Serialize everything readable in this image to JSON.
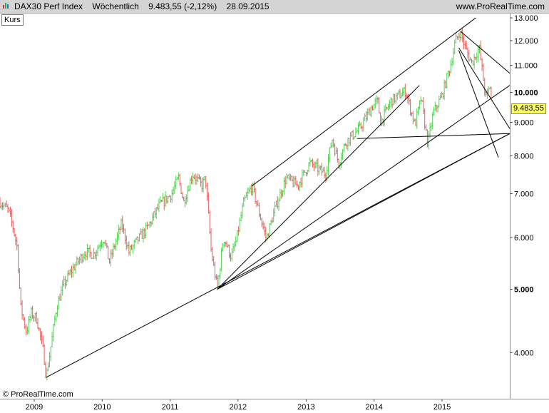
{
  "header": {
    "instrument": "DAX30 Perf Index",
    "period": "Wöchentlich",
    "quote": "9.483,55 (-2,12%)",
    "date": "28.09.2015",
    "website": "www.ProRealTime.com",
    "icon": "bar-chart-icon"
  },
  "panel_tag": "Kurs",
  "copyright": "© ProRealTime.com",
  "last_price_label": "9.483,55",
  "colors": {
    "up": "#55cc55",
    "down": "#e06060",
    "lines": "#000000",
    "badge": "#ffff66"
  },
  "chart_data": {
    "type": "ohlc",
    "title": "",
    "y_scale": "log",
    "ylim": [
      3400,
      13200
    ],
    "x_range": [
      "2008-07-01",
      "2015-12-31"
    ],
    "y_ticks": [
      {
        "value": 4000,
        "label": "4.000",
        "bold": false
      },
      {
        "value": 5000,
        "label": "5.000",
        "bold": true
      },
      {
        "value": 6000,
        "label": "6.000",
        "bold": false
      },
      {
        "value": 7000,
        "label": "7.000",
        "bold": false
      },
      {
        "value": 8000,
        "label": "8.000",
        "bold": false
      },
      {
        "value": 9000,
        "label": "9.000",
        "bold": false
      },
      {
        "value": 10000,
        "label": "10.000",
        "bold": true
      },
      {
        "value": 11000,
        "label": "11.000",
        "bold": false
      },
      {
        "value": 12000,
        "label": "12.000",
        "bold": false
      },
      {
        "value": 13000,
        "label": "13.000",
        "bold": false
      }
    ],
    "x_ticks": [
      {
        "date": "2009-01-01",
        "label": "2009"
      },
      {
        "date": "2010-01-01",
        "label": "2010"
      },
      {
        "date": "2011-01-01",
        "label": "2011"
      },
      {
        "date": "2012-01-01",
        "label": "2012"
      },
      {
        "date": "2013-01-01",
        "label": "2013"
      },
      {
        "date": "2014-01-01",
        "label": "2014"
      },
      {
        "date": "2015-01-01",
        "label": "2015"
      }
    ],
    "price_path": [
      [
        "2008-07-01",
        6800
      ],
      [
        "2008-08-15",
        6600
      ],
      [
        "2008-09-10",
        6200
      ],
      [
        "2008-10-01",
        5800
      ],
      [
        "2008-10-20",
        4700
      ],
      [
        "2008-11-20",
        4300
      ],
      [
        "2008-12-15",
        4600
      ],
      [
        "2009-01-15",
        4500
      ],
      [
        "2009-02-20",
        4000
      ],
      [
        "2009-03-06",
        3666
      ],
      [
        "2009-04-01",
        4100
      ],
      [
        "2009-05-01",
        4700
      ],
      [
        "2009-06-10",
        5100
      ],
      [
        "2009-08-01",
        5400
      ],
      [
        "2009-10-01",
        5700
      ],
      [
        "2009-11-15",
        5650
      ],
      [
        "2010-01-10",
        6000
      ],
      [
        "2010-02-08",
        5500
      ],
      [
        "2010-04-15",
        6300
      ],
      [
        "2010-05-25",
        5700
      ],
      [
        "2010-07-01",
        5900
      ],
      [
        "2010-09-01",
        6200
      ],
      [
        "2010-11-01",
        6700
      ],
      [
        "2011-01-10",
        7000
      ],
      [
        "2011-02-15",
        7400
      ],
      [
        "2011-03-15",
        6800
      ],
      [
        "2011-05-01",
        7500
      ],
      [
        "2011-06-20",
        7200
      ],
      [
        "2011-07-10",
        7400
      ],
      [
        "2011-08-10",
        5700
      ],
      [
        "2011-09-12",
        5000
      ],
      [
        "2011-10-15",
        6000
      ],
      [
        "2011-11-25",
        5600
      ],
      [
        "2011-12-20",
        5900
      ],
      [
        "2012-02-01",
        6800
      ],
      [
        "2012-03-16",
        7190
      ],
      [
        "2012-04-20",
        6600
      ],
      [
        "2012-06-01",
        5970
      ],
      [
        "2012-07-15",
        6600
      ],
      [
        "2012-09-15",
        7400
      ],
      [
        "2012-11-15",
        7200
      ],
      [
        "2013-01-20",
        7800
      ],
      [
        "2013-04-15",
        7500
      ],
      [
        "2013-05-20",
        8500
      ],
      [
        "2013-06-24",
        7800
      ],
      [
        "2013-08-01",
        8400
      ],
      [
        "2013-10-15",
        8800
      ],
      [
        "2013-12-20",
        9500
      ],
      [
        "2014-01-20",
        9700
      ],
      [
        "2014-02-05",
        9000
      ],
      [
        "2014-04-01",
        9700
      ],
      [
        "2014-06-20",
        10050
      ],
      [
        "2014-08-08",
        8900
      ],
      [
        "2014-09-10",
        9800
      ],
      [
        "2014-10-16",
        8350
      ],
      [
        "2014-11-15",
        9300
      ],
      [
        "2015-01-01",
        9900
      ],
      [
        "2015-02-15",
        11000
      ],
      [
        "2015-03-15",
        12000
      ],
      [
        "2015-04-10",
        12390
      ],
      [
        "2015-05-10",
        11600
      ],
      [
        "2015-06-10",
        11100
      ],
      [
        "2015-07-20",
        11700
      ],
      [
        "2015-08-24",
        9800
      ],
      [
        "2015-09-15",
        10200
      ],
      [
        "2015-09-28",
        9483.55
      ]
    ],
    "trendlines": [
      {
        "from": [
          "2012-03-15",
          7190
        ],
        "to": [
          "2015-07-01",
          13000
        ]
      },
      {
        "from": [
          "2009-03-06",
          3666
        ],
        "to": [
          "2015-12-31",
          8650
        ]
      },
      {
        "from": [
          "2011-09-12",
          5000
        ],
        "to": [
          "2014-09-01",
          10250
        ]
      },
      {
        "from": [
          "2011-09-12",
          5000
        ],
        "to": [
          "2015-12-31",
          10250
        ]
      },
      {
        "from": [
          "2011-09-12",
          5000
        ],
        "to": [
          "2015-12-31",
          8650
        ]
      },
      {
        "from": [
          "2013-10-01",
          8500
        ],
        "to": [
          "2015-12-31",
          8650
        ]
      },
      {
        "from": [
          "2015-04-10",
          12400
        ],
        "to": [
          "2015-12-31",
          10700
        ]
      },
      {
        "from": [
          "2015-04-01",
          11700
        ],
        "to": [
          "2015-12-31",
          8800
        ]
      },
      {
        "from": [
          "2015-04-01",
          11600
        ],
        "to": [
          "2015-10-31",
          7950
        ]
      }
    ]
  }
}
